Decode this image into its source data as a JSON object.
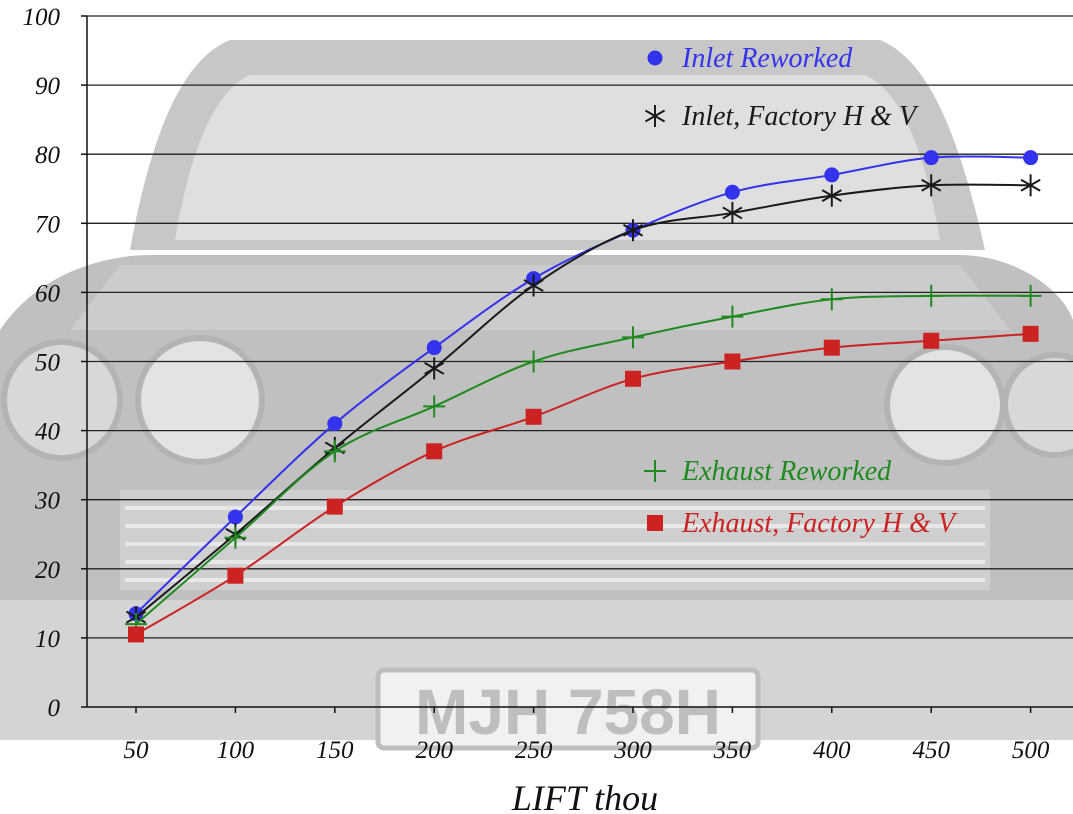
{
  "chart_data": {
    "type": "line",
    "title": "",
    "xlabel": "LIFT thou",
    "ylabel": "",
    "x": [
      50,
      100,
      150,
      200,
      250,
      300,
      350,
      400,
      450,
      500
    ],
    "xticks": [
      "50",
      "100",
      "150",
      "200",
      "250",
      "300",
      "350",
      "400",
      "450",
      "500"
    ],
    "yticks": [
      "0",
      "10",
      "20",
      "30",
      "40",
      "50",
      "60",
      "70",
      "80",
      "90",
      "100"
    ],
    "ylim": [
      0,
      100
    ],
    "grid": "horizontal",
    "background": "faded photograph of a classic car front with number plate",
    "plate_text": "MJH 758H",
    "series": [
      {
        "name": "Inlet Reworked",
        "color": "#3333ee",
        "marker": "circle",
        "values": [
          13.5,
          27.5,
          41,
          52,
          62,
          69,
          74.5,
          77,
          79.5,
          79.5
        ]
      },
      {
        "name": "Inlet, Factory H & V",
        "color": "#1a1a1a",
        "marker": "asterisk",
        "values": [
          13,
          25,
          37.5,
          49,
          61,
          69,
          71.5,
          74,
          75.5,
          75.5
        ]
      },
      {
        "name": "Exhaust Reworked",
        "color": "#1f8a1f",
        "marker": "plus",
        "values": [
          12,
          24.5,
          37,
          43.5,
          50,
          53.5,
          56.5,
          59,
          59.5,
          59.5
        ]
      },
      {
        "name": "Exhaust, Factory H & V",
        "color": "#cc2222",
        "marker": "square",
        "values": [
          10.5,
          19,
          29,
          37,
          42,
          47.5,
          50,
          52,
          53,
          54
        ]
      }
    ]
  }
}
